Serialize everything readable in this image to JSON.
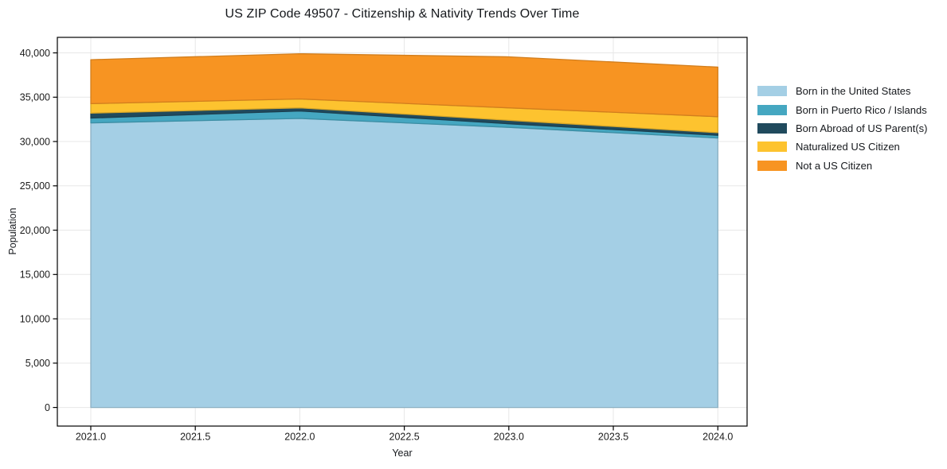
{
  "chart_data": {
    "type": "area",
    "stacked": true,
    "title": "US ZIP Code 49507 - Citizenship & Nativity Trends Over Time",
    "xlabel": "Year",
    "ylabel": "Population",
    "x": [
      2021,
      2022,
      2023,
      2024
    ],
    "series": [
      {
        "name": "Born in the United States",
        "color": "#a4cfe5",
        "values": [
          32100,
          32600,
          31600,
          30400
        ]
      },
      {
        "name": "Born in Puerto Rico / Islands",
        "color": "#45a7c1",
        "values": [
          550,
          850,
          400,
          300
        ]
      },
      {
        "name": "Born Abroad of US Parent(s)",
        "color": "#204a5d",
        "values": [
          550,
          350,
          400,
          300
        ]
      },
      {
        "name": "Naturalized US Citizen",
        "color": "#fdc32f",
        "values": [
          1070,
          1000,
          1400,
          1800
        ]
      },
      {
        "name": "Not a US Citizen",
        "color": "#f79422",
        "values": [
          4960,
          5100,
          5750,
          5600
        ]
      }
    ],
    "stack_totals": [
      39230,
      39900,
      39550,
      38400
    ],
    "xlim": [
      2020.84,
      2024.14
    ],
    "ylim": [
      -2100,
      41750
    ],
    "xticks": {
      "values": [
        2021,
        2021.5,
        2022,
        2022.5,
        2023,
        2023.5,
        2024
      ],
      "labels": [
        "2021.0",
        "2021.5",
        "2022.0",
        "2022.5",
        "2023.0",
        "2023.5",
        "2024.0"
      ]
    },
    "yticks": {
      "values": [
        0,
        5000,
        10000,
        15000,
        20000,
        25000,
        30000,
        35000,
        40000
      ],
      "labels": [
        "0",
        "5,000",
        "10,000",
        "15,000",
        "20,000",
        "25,000",
        "30,000",
        "35,000",
        "40,000"
      ]
    },
    "grid": true,
    "grid_color": "#e7e7e7",
    "spine_color": "#000000",
    "tick_text_color": "#1b1b1b",
    "legend_position": "right"
  }
}
